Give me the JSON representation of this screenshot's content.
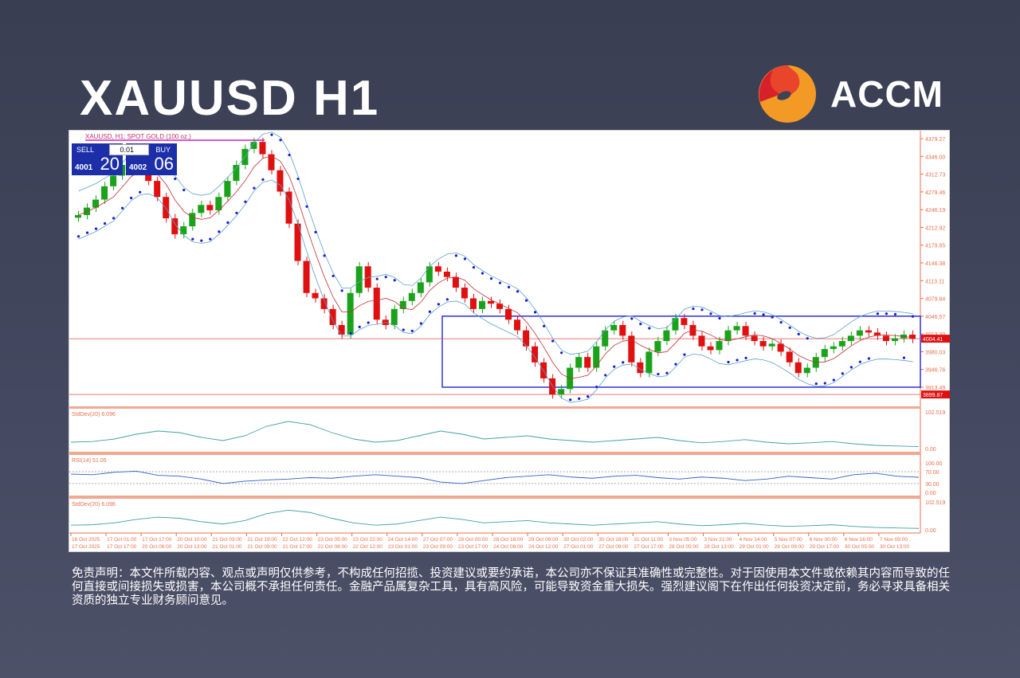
{
  "header": {
    "title": "XAUUSD H1",
    "brand": "ACCM"
  },
  "chart_header": {
    "symbol_label": "XAUUSD, H1:  SPOT GOLD (100 oz.)",
    "sell_label": "SELL",
    "buy_label": "BUY",
    "lot": "0.01",
    "sell_price_small": "4001",
    "sell_price_big": "20",
    "buy_price_small": "4002",
    "buy_price_big": "06"
  },
  "colors": {
    "bull": "#1aa31a",
    "bear": "#e01010",
    "sar": "#1a1ad0",
    "bands": "#5aa0c8",
    "box": "#1010d0",
    "axis": "#e8704a",
    "current_price_bg": "#e01010"
  },
  "chart_data": {
    "type": "candlestick",
    "ylim": [
      3890,
      4385
    ],
    "y_ticks": [
      "4379.27",
      "4346.00",
      "4312.73",
      "4279.46",
      "4246.19",
      "4212.92",
      "4179.65",
      "4146.38",
      "4113.11",
      "4079.84",
      "4046.57",
      "4013.30",
      "3980.03",
      "3946.76",
      "3913.49"
    ],
    "current_price": "4004.41",
    "low_line_label": "3899.87",
    "range_box": [
      3913.49,
      4046.57
    ],
    "close": [
      4236,
      4250,
      4265,
      4290,
      4310,
      4330,
      4345,
      4320,
      4300,
      4270,
      4230,
      4200,
      4215,
      4240,
      4255,
      4245,
      4270,
      4300,
      4330,
      4360,
      4373,
      4350,
      4320,
      4280,
      4220,
      4150,
      4090,
      4080,
      4060,
      4030,
      4012,
      4090,
      4140,
      4100,
      4040,
      4030,
      4060,
      4075,
      4090,
      4110,
      4140,
      4130,
      4120,
      4100,
      4080,
      4060,
      4075,
      4070,
      4060,
      4040,
      4020,
      3990,
      3960,
      3930,
      3900,
      3910,
      3950,
      3970,
      3950,
      3990,
      4020,
      4030,
      4010,
      3960,
      3940,
      3980,
      4000,
      4020,
      4043,
      4030,
      4010,
      3990,
      3983,
      4000,
      4020,
      4028,
      4010,
      4000,
      3990,
      3995,
      3980,
      3960,
      3940,
      3950,
      3970,
      3985,
      3990,
      4000,
      4010,
      4020,
      4016,
      4010,
      4000,
      4005,
      4012,
      4004
    ],
    "x_labels_top": [
      "16 Oct 2025",
      "17 Oct 01:00",
      "17 Oct 17:00",
      "20 Oct 10:00",
      "21 Oct 03:00",
      "21 Oct 19:00",
      "22 Oct 12:00",
      "23 Oct 05:00",
      "23 Oct 22:00",
      "24 Oct 14:00",
      "27 Oct 07:00",
      "28 Oct 00:00",
      "28 Oct 16:00",
      "29 Oct 09:00",
      "30 Oct 02:00",
      "30 Oct 18:00",
      "31 Oct 11:00",
      "3 Nov 05:00",
      "3 Nov 21:00",
      "4 Nov 14:00",
      "5 Nov 07:00",
      "6 Nov 00:00",
      "6 Nov 16:00",
      "7 Nov 09:00"
    ],
    "x_labels_bottom": [
      "17 Oct 2025",
      "17 Oct 17:00",
      "20 Oct 06:00",
      "20 Oct 13:00",
      "21 Oct 01:00",
      "21 Oct 09:00",
      "21 Oct 17:00",
      "22 Oct 06:00",
      "22 Oct 12:00",
      "23 Oct 01:00",
      "23 Oct 09:00",
      "23 Oct 17:00",
      "24 Oct 06:00",
      "24 Oct 12:00",
      "27 Oct 01:00",
      "27 Oct 09:00",
      "27 Oct 17:00",
      "28 Oct 05:00",
      "28 Oct 13:00",
      "29 Oct 01:00",
      "29 Oct 09:00",
      "29 Oct 17:00",
      "30 Oct 05:00",
      "30 Oct 13:00"
    ],
    "indicators": [
      {
        "label": "StdDev(20) 6.096",
        "ymax": "102.519",
        "ymin": "0.00",
        "values": [
          20,
          22,
          30,
          45,
          55,
          50,
          35,
          25,
          40,
          70,
          85,
          75,
          50,
          30,
          20,
          25,
          40,
          55,
          45,
          30,
          35,
          40,
          30,
          25,
          20,
          25,
          30,
          35,
          25,
          18,
          22,
          28,
          20,
          15,
          18,
          22,
          15,
          10,
          8,
          6
        ]
      },
      {
        "label": "RSI(14) 51.05",
        "levels": [
          "100.00",
          "70.00",
          "30.00",
          "0.00"
        ],
        "values": [
          62,
          60,
          68,
          72,
          58,
          55,
          45,
          30,
          38,
          42,
          45,
          50,
          48,
          55,
          60,
          55,
          50,
          35,
          30,
          40,
          50,
          55,
          60,
          52,
          48,
          55,
          58,
          50,
          45,
          52,
          48,
          40,
          45,
          55,
          50,
          45,
          60,
          65,
          55,
          51
        ]
      },
      {
        "label": "StdDev(20) 6.096",
        "ymax": "102.519",
        "ymin": "0.00",
        "values": [
          20,
          22,
          30,
          45,
          55,
          50,
          35,
          25,
          40,
          70,
          85,
          75,
          50,
          30,
          20,
          25,
          40,
          55,
          45,
          30,
          35,
          40,
          30,
          25,
          20,
          25,
          30,
          35,
          25,
          18,
          22,
          28,
          20,
          15,
          18,
          22,
          15,
          10,
          8,
          6
        ]
      }
    ]
  },
  "disclaimer": "免责声明：本文件所载内容、观点或声明仅供参考，不构成任何招揽、投资建议或要约承诺，本公司亦不保证其准确性或完整性。对于因使用本文件或依赖其内容而导致的任何直接或间接损失或损害，本公司概不承担任何责任。金融产品属复杂工具，具有高风险，可能导致资金重大损失。强烈建议阁下在作出任何投资决定前，务必寻求具备相关资质的独立专业财务顾问意见。"
}
